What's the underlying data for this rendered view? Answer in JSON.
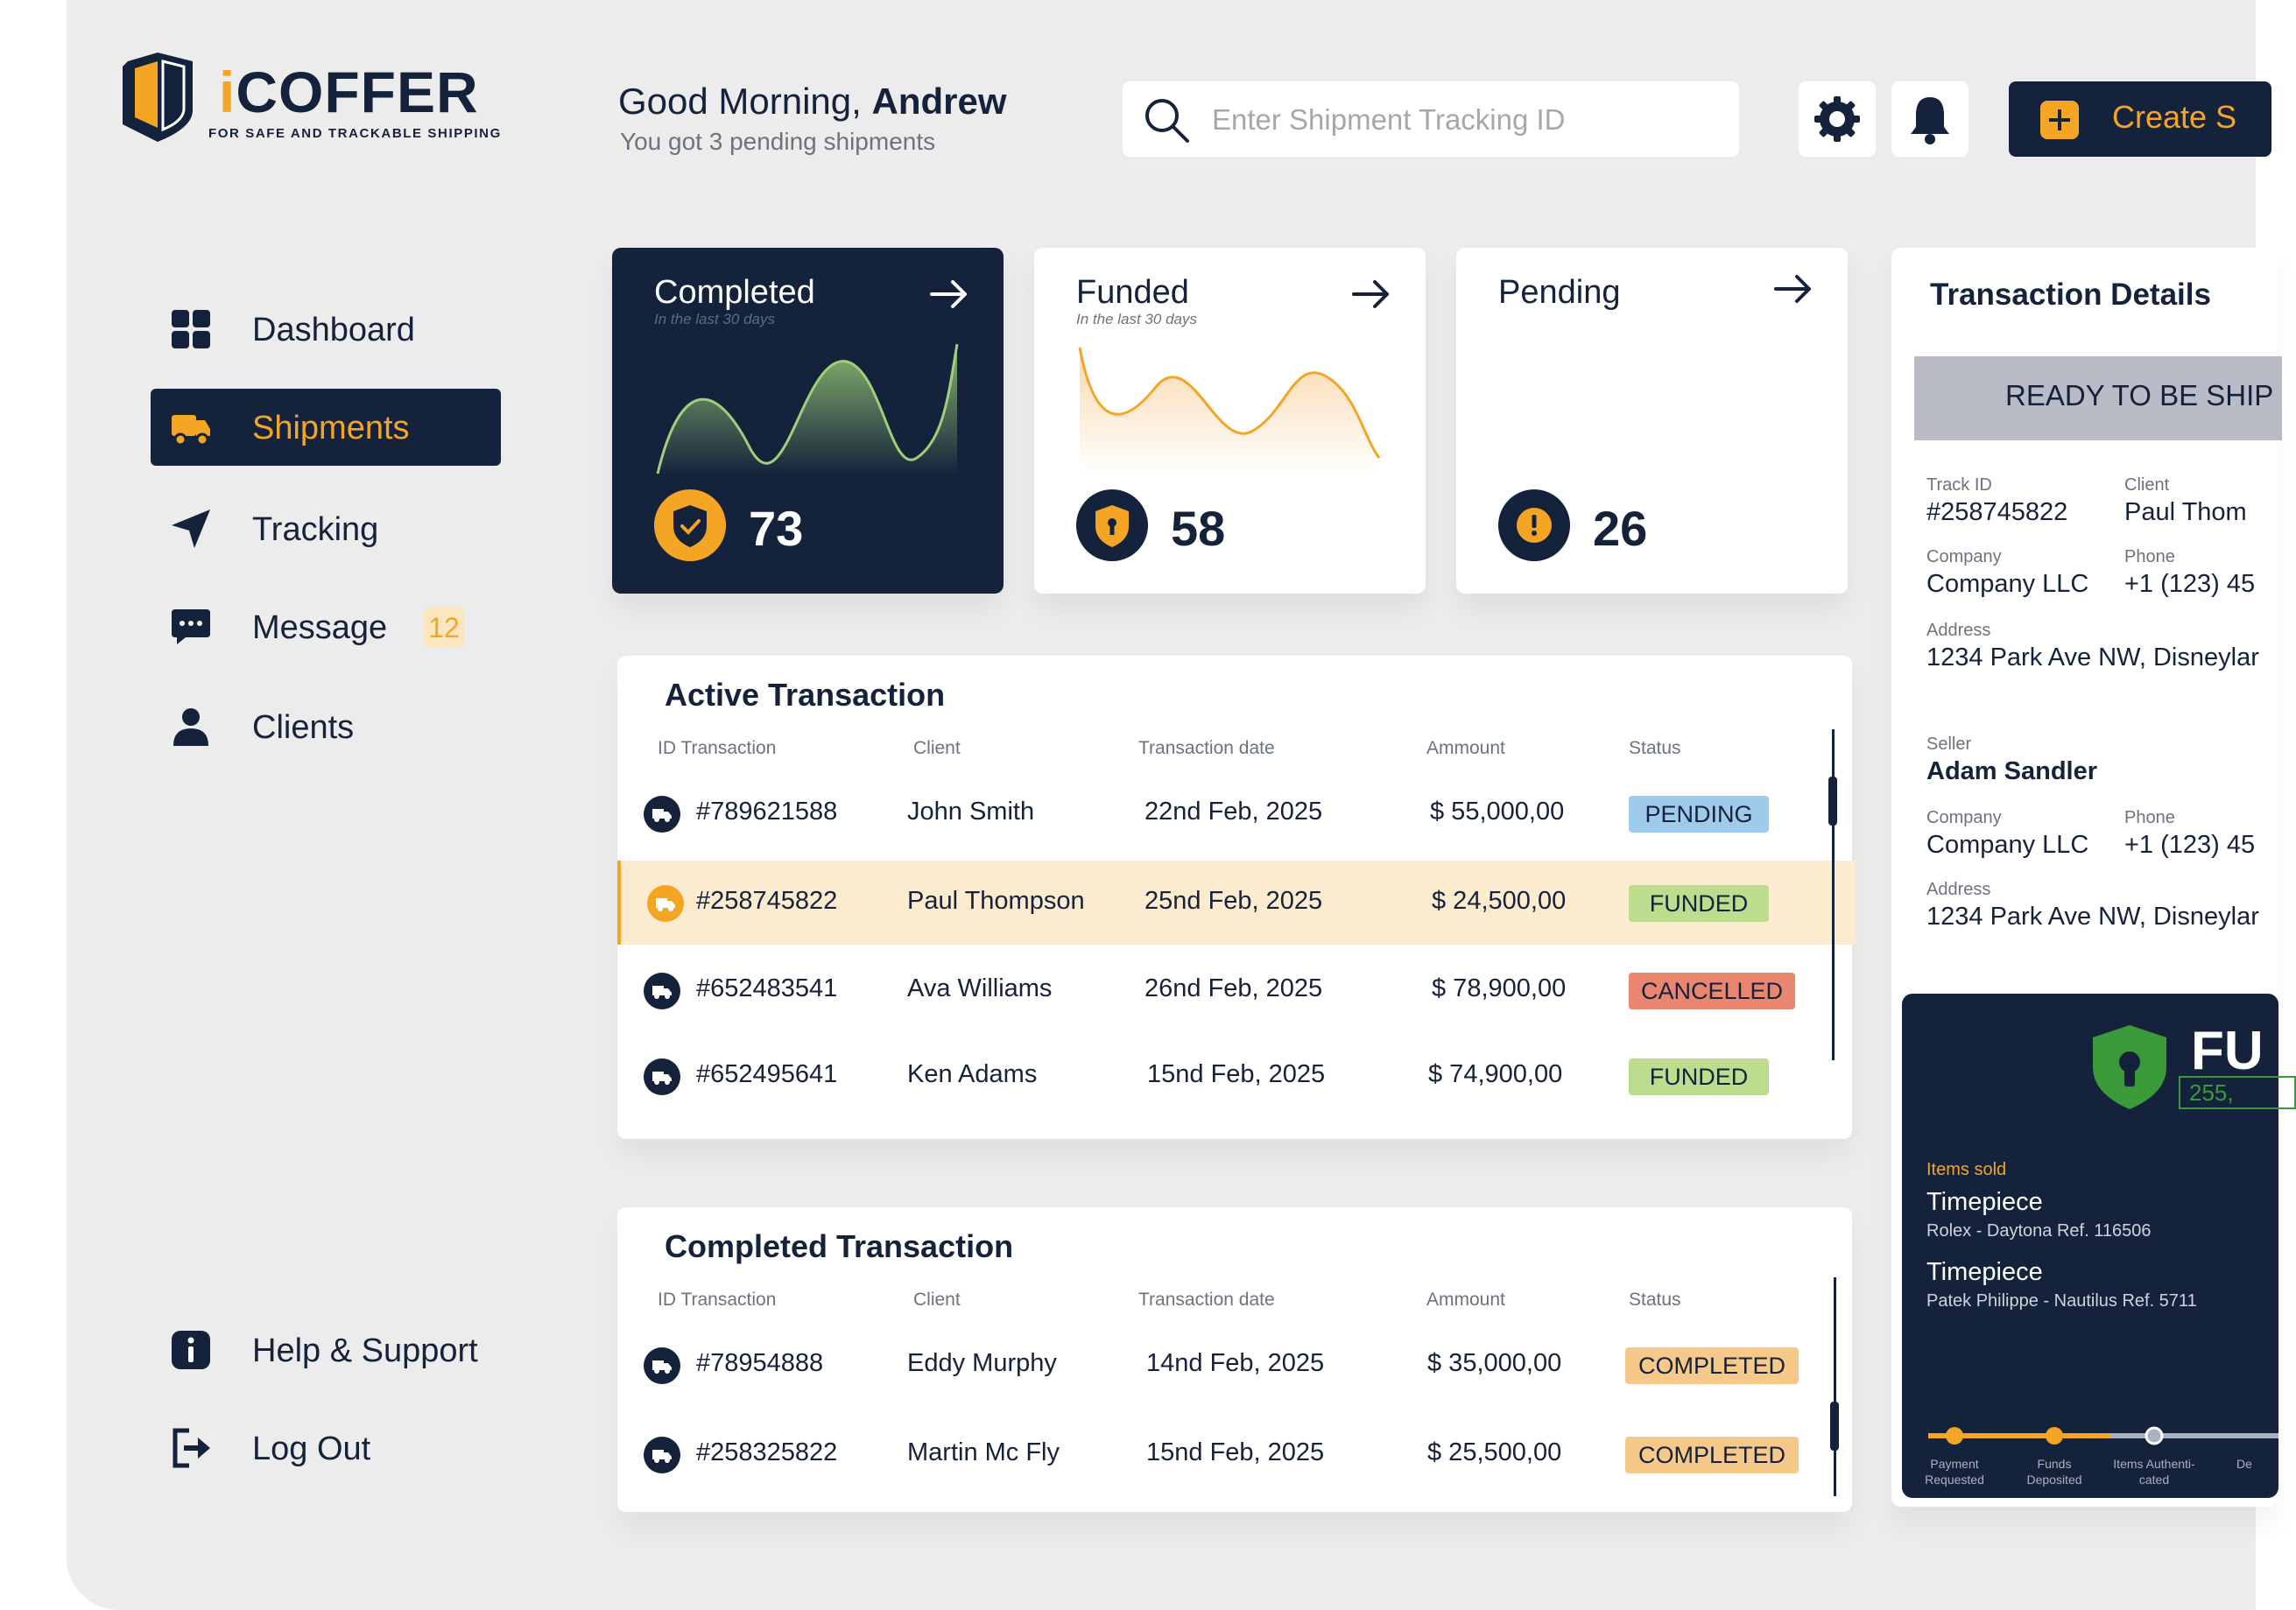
{
  "brand": {
    "name": "iCOFFER",
    "name_i": "i",
    "name_rest": "COFFER",
    "tagline": "FOR SAFE AND TRACKABLE SHIPPING"
  },
  "header": {
    "greeting_prefix": "Good Morning,",
    "greeting_name": "Andrew",
    "subtitle": "You got 3 pending shipments",
    "search_placeholder": "Enter Shipment Tracking ID",
    "create_label": "Create S"
  },
  "sidebar": {
    "items": [
      {
        "label": "Dashboard"
      },
      {
        "label": "Shipments"
      },
      {
        "label": "Tracking"
      },
      {
        "label": "Message",
        "badge": "12"
      },
      {
        "label": "Clients"
      }
    ],
    "bottom": [
      {
        "label": "Help & Support"
      },
      {
        "label": "Log Out"
      }
    ]
  },
  "stats": [
    {
      "title": "Completed",
      "subtitle": "In the last 30 days",
      "value": "73"
    },
    {
      "title": "Funded",
      "subtitle": "In the last 30 days",
      "value": "58"
    },
    {
      "title": "Pending",
      "value": "26"
    }
  ],
  "active_table": {
    "title": "Active Transaction",
    "columns": [
      "ID Transaction",
      "Client",
      "Transaction date",
      "Ammount",
      "Status"
    ],
    "rows": [
      {
        "id": "#789621588",
        "client": "John Smith",
        "date": "22nd Feb, 2025",
        "amount": "$ 55,000,00",
        "status": "PENDING"
      },
      {
        "id": "#258745822",
        "client": "Paul Thompson",
        "date": "25nd Feb, 2025",
        "amount": "$ 24,500,00",
        "status": "FUNDED"
      },
      {
        "id": "#652483541",
        "client": "Ava Williams",
        "date": "26nd Feb, 2025",
        "amount": "$ 78,900,00",
        "status": "CANCELLED"
      },
      {
        "id": "#652495641",
        "client": "Ken Adams",
        "date": "15nd Feb, 2025",
        "amount": "$ 74,900,00",
        "status": "FUNDED"
      }
    ]
  },
  "completed_table": {
    "title": "Completed Transaction",
    "columns": [
      "ID Transaction",
      "Client",
      "Transaction date",
      "Ammount",
      "Status"
    ],
    "rows": [
      {
        "id": "#78954888",
        "client": "Eddy Murphy",
        "date": "14nd Feb, 2025",
        "amount": "$ 35,000,00",
        "status": "COMPLETED"
      },
      {
        "id": "#258325822",
        "client": "Martin Mc Fly",
        "date": "15nd Feb, 2025",
        "amount": "$ 25,500,00",
        "status": "COMPLETED"
      }
    ]
  },
  "details": {
    "title": "Transaction Details",
    "status_banner": "READY TO BE SHIP",
    "track_id_label": "Track ID",
    "track_id": "#258745822",
    "client_label": "Client",
    "client": "Paul Thom",
    "company_label": "Company",
    "company": "Company LLC",
    "phone_label": "Phone",
    "phone": "+1 (123) 45",
    "address_label": "Address",
    "address": "1234 Park Ave NW, Disneylar",
    "seller_label": "Seller",
    "seller": "Adam Sandler",
    "seller_company_label": "Company",
    "seller_company": "Company LLC",
    "seller_phone_label": "Phone",
    "seller_phone": "+1 (123) 45",
    "seller_address_label": "Address",
    "seller_address": "1234 Park Ave NW, Disneylar"
  },
  "funded_card": {
    "title": "FU",
    "amount": "255,",
    "items_label": "Items sold",
    "items": [
      {
        "name": "Timepiece",
        "desc": "Rolex - Daytona Ref. 116506"
      },
      {
        "name": "Timepiece",
        "desc": "Patek Philippe - Nautilus Ref. 5711"
      }
    ],
    "steps": [
      "Payment Requested",
      "Funds Deposited",
      "Items Authenti-cated",
      "De"
    ]
  },
  "colors": {
    "navy": "#15223b",
    "orange": "#f5a524",
    "pending": "#9ecbea",
    "funded": "#bddc8e",
    "cancelled": "#ea866f",
    "completed": "#f6c889",
    "background": "#ececec"
  }
}
